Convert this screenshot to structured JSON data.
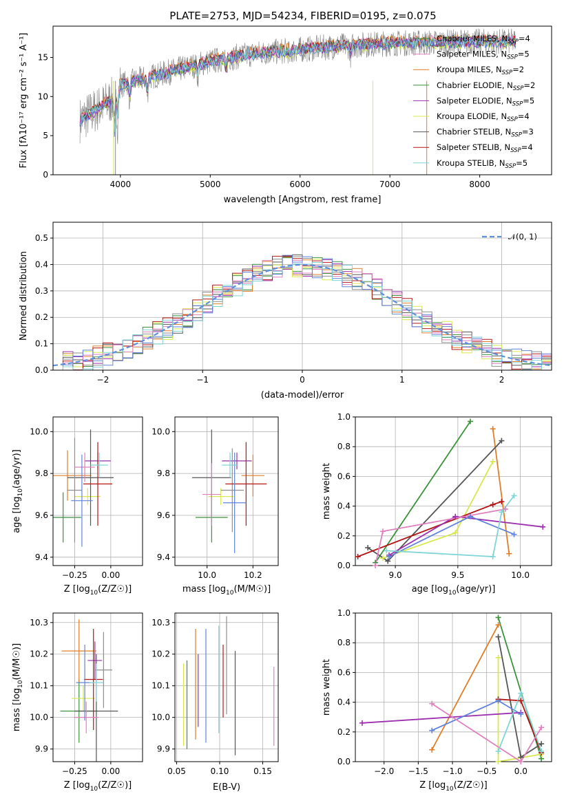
{
  "title": "PLATE=2753, MJD=54234, FIBERID=0195, z=0.075",
  "colors": {
    "ssp": [
      "#3a923a",
      "#9b2fae",
      "#e17d27",
      "#d7e84d",
      "#555555",
      "#8e8e8e",
      "#b31515",
      "#e07fbe",
      "#5f82db",
      "#7fd4d6"
    ],
    "normal": "#5f8fd8",
    "grid": "#b0b0b0"
  },
  "chart_data": [
    {
      "id": "spectrum",
      "type": "line",
      "title": "PLATE=2753, MJD=54234, FIBERID=0195, z=0.075",
      "xlabel": "wavelength [Angstrom, rest frame]",
      "ylabel": "Flux [f_λ 10^-17 erg cm^-2 s^-1 A^-1]",
      "xlim": [
        3250,
        8800
      ],
      "ylim": [
        0,
        19
      ],
      "xticks": [
        "4000",
        "5000",
        "6000",
        "7000",
        "8000"
      ],
      "yticks": [
        "0",
        "5",
        "10",
        "15"
      ],
      "grid": false,
      "legend_position": "top-right",
      "series": [
        {
          "name": "Chabrier MILES, N_SSP=4",
          "color": "#3a923a"
        },
        {
          "name": "Salpeter MILES, N_SSP=5",
          "color": "#e07fbe"
        },
        {
          "name": "Kroupa MILES, N_SSP=2",
          "color": "#e17d27"
        },
        {
          "name": "Chabrier ELODIE, N_SSP=2",
          "color": "#3a923a"
        },
        {
          "name": "Salpeter ELODIE, N_SSP=5",
          "color": "#9b2fae"
        },
        {
          "name": "Kroupa ELODIE, N_SSP=4",
          "color": "#d7e84d"
        },
        {
          "name": "Chabrier STELIB, N_SSP=3",
          "color": "#555555"
        },
        {
          "name": "Salpeter STELIB, N_SSP=4",
          "color": "#b31515"
        },
        {
          "name": "Kroupa STELIB, N_SSP=5",
          "color": "#7fd4d6"
        }
      ],
      "data_range": [
        3550,
        8400
      ],
      "continuum_points": [
        [
          3550,
          7
        ],
        [
          3900,
          9.5
        ],
        [
          4000,
          11.5
        ],
        [
          4500,
          13
        ],
        [
          5000,
          14.5
        ],
        [
          5500,
          15.5
        ],
        [
          6000,
          16
        ],
        [
          6500,
          16.5
        ],
        [
          7000,
          16.8
        ],
        [
          8000,
          17
        ],
        [
          8400,
          17
        ]
      ],
      "legend_labels": [
        {
          "pre": "Chabrier MILES, N",
          "sub": "SSP",
          "post": "=4"
        },
        {
          "pre": "Salpeter MILES, N",
          "sub": "SSP",
          "post": "=5"
        },
        {
          "pre": "Kroupa MILES, N",
          "sub": "SSP",
          "post": "=2"
        },
        {
          "pre": "Chabrier ELODIE, N",
          "sub": "SSP",
          "post": "=2"
        },
        {
          "pre": "Salpeter ELODIE, N",
          "sub": "SSP",
          "post": "=5"
        },
        {
          "pre": "Kroupa ELODIE, N",
          "sub": "SSP",
          "post": "=4"
        },
        {
          "pre": "Chabrier STELIB, N",
          "sub": "SSP",
          "post": "=3"
        },
        {
          "pre": "Salpeter STELIB, N",
          "sub": "SSP",
          "post": "=4"
        },
        {
          "pre": "Kroupa STELIB, N",
          "sub": "SSP",
          "post": "=5"
        }
      ]
    },
    {
      "id": "residuals",
      "type": "area",
      "xlabel": "(data-model)/error",
      "ylabel": "Normed distribution",
      "xlim": [
        -2.5,
        2.5
      ],
      "ylim": [
        0,
        0.56
      ],
      "xticks": [
        "−2",
        "−1",
        "0",
        "1",
        "2"
      ],
      "yticks": [
        "0.0",
        "0.1",
        "0.2",
        "0.3",
        "0.4",
        "0.5"
      ],
      "grid": true,
      "legend_position": "top-right",
      "legend": "𝒩(0, 1)",
      "bin_width": 0.1
    },
    {
      "id": "z-age",
      "type": "scatter",
      "xlabel_main": "Z [log",
      "xlabel_sub": "10",
      "xlabel_post": "(Z/Z☉)]",
      "ylabel": "age [log10(age/yr)]",
      "xlim": [
        -0.4,
        0.22
      ],
      "ylim": [
        9.36,
        10.07
      ],
      "xticks": [
        "−0.25",
        "0.00"
      ],
      "yticks": [
        "9.4",
        "9.6",
        "9.8",
        "10.0"
      ],
      "points": [
        [
          -0.33,
          9.59,
          0.25,
          0.12
        ],
        [
          -0.09,
          9.86,
          0.18,
          0.04
        ],
        [
          -0.3,
          9.79,
          0.33,
          0.12
        ],
        [
          -0.16,
          9.69,
          0.18,
          0.04
        ],
        [
          -0.14,
          9.78,
          0.32,
          0.23
        ],
        [
          -0.25,
          9.72,
          0.1,
          0.25
        ],
        [
          -0.09,
          9.75,
          0.2,
          0.2
        ],
        [
          -0.18,
          9.83,
          0.14,
          0.07
        ],
        [
          -0.2,
          9.67,
          0.15,
          0.22
        ],
        [
          -0.08,
          9.84,
          0.12,
          0.06
        ]
      ]
    },
    {
      "id": "mass-age",
      "type": "scatter",
      "xlabel_main": "mass [log",
      "xlabel_sub": "10",
      "xlabel_post": "(M/M☉)]",
      "xlim": [
        9.86,
        10.31
      ],
      "ylim": [
        9.36,
        10.07
      ],
      "xticks": [
        "10.0",
        "10.2"
      ],
      "yticks": [
        "9.4",
        "9.6",
        "9.8",
        "10.0"
      ],
      "points": [
        [
          10.02,
          9.59,
          0.14,
          0.12
        ],
        [
          10.13,
          9.86,
          0.13,
          0.04
        ],
        [
          10.2,
          9.79,
          0.1,
          0.1
        ],
        [
          10.06,
          9.69,
          0.11,
          0.04
        ],
        [
          10.02,
          9.78,
          0.17,
          0.23
        ],
        [
          10.11,
          9.72,
          0.1,
          0.2
        ],
        [
          10.17,
          9.75,
          0.18,
          0.2
        ],
        [
          10.02,
          9.7,
          0.08,
          0.15
        ],
        [
          10.12,
          9.66,
          0.1,
          0.24
        ],
        [
          10.1,
          9.84,
          0.07,
          0.06
        ]
      ]
    },
    {
      "id": "age-weight",
      "type": "line",
      "xlabel_main": "age  [log",
      "xlabel_sub": "10",
      "xlabel_post": "(age/yr)]",
      "ylabel": "mass weight",
      "xlim": [
        8.68,
        10.25
      ],
      "ylim": [
        0,
        1
      ],
      "xticks": [
        "9.0",
        "9.5",
        "10.0"
      ],
      "yticks": [
        "0.0",
        "0.2",
        "0.4",
        "0.6",
        "0.8",
        "1.0"
      ],
      "grid": true,
      "series": [
        {
          "color": "#3a923a",
          "points": [
            [
              8.84,
              0.02
            ],
            [
              9.6,
              0.97
            ]
          ]
        },
        {
          "color": "#e17d27",
          "points": [
            [
              9.78,
              0.92
            ],
            [
              9.91,
              0.08
            ]
          ]
        },
        {
          "color": "#555555",
          "points": [
            [
              8.78,
              0.12
            ],
            [
              8.94,
              0.03
            ],
            [
              9.85,
              0.84
            ]
          ]
        },
        {
          "color": "#d7e84d",
          "points": [
            [
              8.9,
              0.05
            ],
            [
              9.48,
              0.22
            ],
            [
              9.78,
              0.7
            ]
          ]
        },
        {
          "color": "#b31515",
          "points": [
            [
              8.7,
              0.06
            ],
            [
              9.78,
              0.41
            ],
            [
              9.85,
              0.43
            ]
          ]
        },
        {
          "color": "#9b2fae",
          "points": [
            [
              8.95,
              0.07
            ],
            [
              9.48,
              0.33
            ],
            [
              10.18,
              0.26
            ]
          ]
        },
        {
          "color": "#5f82db",
          "points": [
            [
              8.95,
              0.06
            ],
            [
              9.6,
              0.33
            ],
            [
              9.95,
              0.21
            ]
          ]
        },
        {
          "color": "#e07fbe",
          "points": [
            [
              8.84,
              0.0
            ],
            [
              8.9,
              0.23
            ],
            [
              9.88,
              0.38
            ]
          ]
        },
        {
          "color": "#7fd4d6",
          "points": [
            [
              8.93,
              0.1
            ],
            [
              9.78,
              0.06
            ],
            [
              9.85,
              0.36
            ],
            [
              9.95,
              0.47
            ]
          ]
        }
      ]
    },
    {
      "id": "z-mass",
      "type": "scatter",
      "xlabel_main": "Z [log",
      "xlabel_sub": "10",
      "xlabel_post": "(Z/Z☉)]",
      "ylabel": "mass [log10(M/M☉)]",
      "xlim": [
        -0.4,
        0.22
      ],
      "ylim": [
        9.86,
        10.33
      ],
      "xticks": [
        "−0.25",
        "0.00"
      ],
      "yticks": [
        "9.9",
        "10.0",
        "10.1",
        "10.2",
        "10.3"
      ],
      "points": [
        [
          -0.22,
          10.02,
          0.26,
          0.1
        ],
        [
          -0.11,
          10.18,
          0.1,
          0.06
        ],
        [
          -0.22,
          10.21,
          0.24,
          0.1
        ],
        [
          -0.19,
          10.06,
          0.16,
          0.04
        ],
        [
          -0.1,
          10.02,
          0.3,
          0.18
        ],
        [
          -0.05,
          10.15,
          0.12,
          0.12
        ],
        [
          -0.12,
          10.12,
          0.13,
          0.16
        ],
        [
          -0.17,
          10.0,
          0.17,
          0.05
        ],
        [
          -0.18,
          10.11,
          0.12,
          0.12
        ],
        [
          -0.1,
          10.11,
          0.1,
          0.06
        ]
      ]
    },
    {
      "id": "ebv-mass",
      "type": "scatter",
      "xlabel": "E(B-V)",
      "xlim": [
        0.048,
        0.168
      ],
      "ylim": [
        9.86,
        10.33
      ],
      "xticks": [
        "0.05",
        "0.10",
        "0.15"
      ],
      "yticks": [
        "9.9",
        "10.0",
        "10.1",
        "10.2",
        "10.3"
      ],
      "vlines": [
        [
          0.058,
          9.91,
          10.17
        ],
        [
          0.062,
          9.9,
          10.18
        ],
        [
          0.072,
          9.93,
          10.28
        ],
        [
          0.075,
          9.97,
          10.2
        ],
        [
          0.084,
          9.92,
          10.28
        ],
        [
          0.099,
          9.95,
          10.29
        ],
        [
          0.104,
          10.0,
          10.23
        ],
        [
          0.108,
          10.01,
          10.32
        ],
        [
          0.118,
          9.88,
          10.21
        ],
        [
          0.163,
          9.91,
          10.16
        ]
      ],
      "vline_colors": [
        "#d7e84d",
        "#3a923a",
        "#e17d27",
        "#9b2fae",
        "#5f82db",
        "#7fd4d6",
        "#b31515",
        "#8e8e8e",
        "#555555",
        "#e07fbe"
      ]
    },
    {
      "id": "z-weight",
      "type": "line",
      "xlabel_main": "Z [log",
      "xlabel_sub": "10",
      "xlabel_post": "(Z/Z☉)]",
      "ylabel": "mass weight",
      "xlim": [
        -2.42,
        0.45
      ],
      "ylim": [
        0,
        1
      ],
      "xticks": [
        "−2.0",
        "−1.5",
        "−1.0",
        "−0.5",
        "0.0"
      ],
      "yticks": [
        "0.0",
        "0.2",
        "0.4",
        "0.6",
        "0.8",
        "1.0"
      ],
      "grid": true,
      "series": [
        {
          "color": "#3a923a",
          "points": [
            [
              -0.33,
              0.97
            ],
            [
              0.3,
              0.02
            ]
          ]
        },
        {
          "color": "#e17d27",
          "points": [
            [
              -1.3,
              0.08
            ],
            [
              -0.33,
              0.92
            ]
          ]
        },
        {
          "color": "#555555",
          "points": [
            [
              -0.33,
              0.84
            ],
            [
              0.0,
              0.03
            ],
            [
              0.3,
              0.12
            ]
          ]
        },
        {
          "color": "#d7e84d",
          "points": [
            [
              -0.33,
              0.7
            ],
            [
              -0.33,
              0.0
            ],
            [
              0.3,
              0.05
            ]
          ]
        },
        {
          "color": "#b31515",
          "points": [
            [
              -0.33,
              0.42
            ],
            [
              0.0,
              0.41
            ],
            [
              0.3,
              0.06
            ]
          ]
        },
        {
          "color": "#9b2fae",
          "points": [
            [
              -2.32,
              0.26
            ],
            [
              0.0,
              0.33
            ]
          ]
        },
        {
          "color": "#5f82db",
          "points": [
            [
              -1.3,
              0.21
            ],
            [
              -0.33,
              0.41
            ],
            [
              0.0,
              0.32
            ]
          ]
        },
        {
          "color": "#e07fbe",
          "points": [
            [
              -1.3,
              0.39
            ],
            [
              0.0,
              0.0
            ],
            [
              0.3,
              0.23
            ]
          ]
        },
        {
          "color": "#7fd4d6",
          "points": [
            [
              -0.33,
              0.07
            ],
            [
              0.0,
              0.46
            ],
            [
              0.3,
              0.07
            ]
          ]
        }
      ]
    }
  ]
}
